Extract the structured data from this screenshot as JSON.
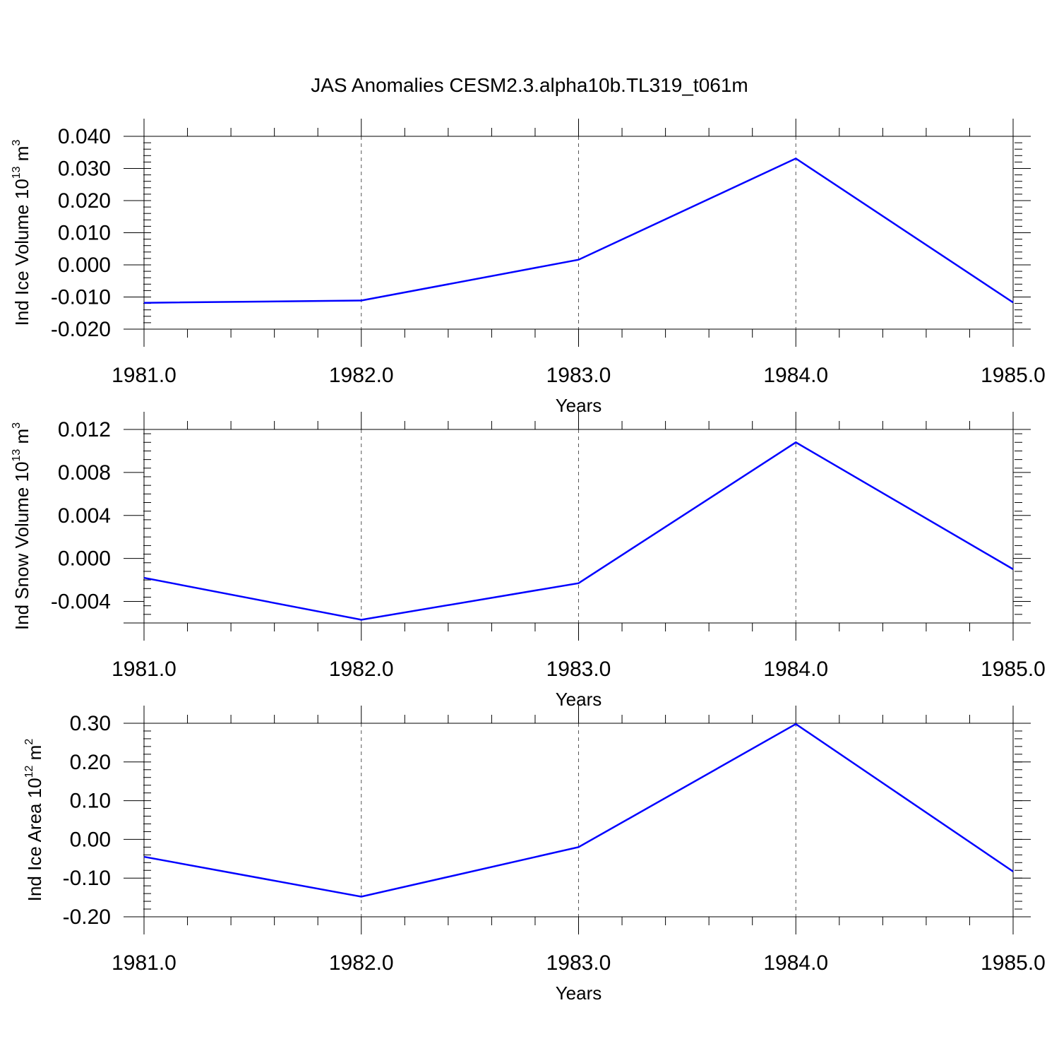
{
  "title": "JAS Anomalies CESM2.3.alpha10b.TL319_t061m",
  "colors": {
    "series": "#0000ff",
    "axis": "#000000",
    "grid": "#555555"
  },
  "chart_data": [
    {
      "type": "line",
      "ylabel": {
        "prefix": "Ind Ice Volume 10",
        "exp": "13",
        "unit": " m",
        "unit_exp": "3"
      },
      "xlabel": "Years",
      "x": [
        1981,
        1982,
        1983,
        1984,
        1985
      ],
      "values": [
        -0.0118,
        -0.0111,
        0.0016,
        0.0331,
        -0.0117
      ],
      "ylim": [
        -0.02,
        0.04
      ],
      "xlim": [
        1981,
        1985
      ],
      "yticks": [
        -0.02,
        -0.01,
        0.0,
        0.01,
        0.02,
        0.03,
        0.04
      ],
      "ytick_labels": [
        "-0.020",
        "-0.010",
        "0.000",
        "0.010",
        "0.020",
        "0.030",
        "0.040"
      ],
      "xticks": [
        1981,
        1982,
        1983,
        1984,
        1985
      ],
      "xtick_labels": [
        "1981.0",
        "1982.0",
        "1983.0",
        "1984.0",
        "1985.0"
      ],
      "grid": "vertical dashed at major x ticks"
    },
    {
      "type": "line",
      "ylabel": {
        "prefix": "Ind Snow Volume 10",
        "exp": "13",
        "unit": " m",
        "unit_exp": "3"
      },
      "xlabel": "Years",
      "x": [
        1981,
        1982,
        1983,
        1984,
        1985
      ],
      "values": [
        -0.0018,
        -0.0057,
        -0.0023,
        0.0108,
        -0.001
      ],
      "ylim": [
        -0.006,
        0.012
      ],
      "xlim": [
        1981,
        1985
      ],
      "yticks": [
        -0.004,
        0.0,
        0.004,
        0.008,
        0.012
      ],
      "ytick_labels": [
        "-0.004",
        "0.000",
        "0.004",
        "0.008",
        "0.012"
      ],
      "xticks": [
        1981,
        1982,
        1983,
        1984,
        1985
      ],
      "xtick_labels": [
        "1981.0",
        "1982.0",
        "1983.0",
        "1984.0",
        "1985.0"
      ],
      "grid": "vertical dashed at major x ticks"
    },
    {
      "type": "line",
      "ylabel": {
        "prefix": "Ind Ice Area 10",
        "exp": "12",
        "unit": " m",
        "unit_exp": "2"
      },
      "xlabel": "Years",
      "x": [
        1981,
        1982,
        1983,
        1984,
        1985
      ],
      "values": [
        -0.045,
        -0.148,
        -0.02,
        0.298,
        -0.083
      ],
      "ylim": [
        -0.2,
        0.3
      ],
      "xlim": [
        1981,
        1985
      ],
      "yticks": [
        -0.2,
        -0.1,
        0.0,
        0.1,
        0.2,
        0.3
      ],
      "ytick_labels": [
        "-0.20",
        "-0.10",
        "0.00",
        "0.10",
        "0.20",
        "0.30"
      ],
      "xticks": [
        1981,
        1982,
        1983,
        1984,
        1985
      ],
      "xtick_labels": [
        "1981.0",
        "1982.0",
        "1983.0",
        "1984.0",
        "1985.0"
      ],
      "grid": "vertical dashed at major x ticks"
    }
  ]
}
